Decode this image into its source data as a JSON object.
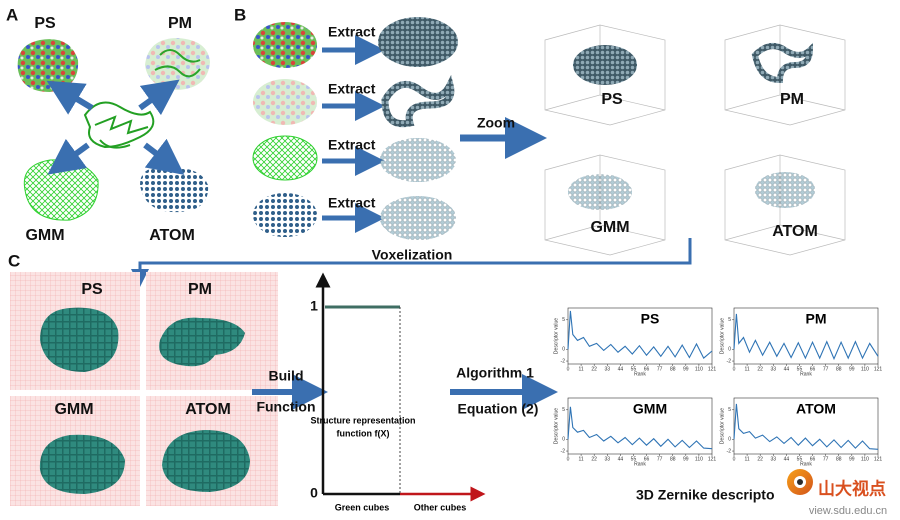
{
  "panel_a": {
    "letter": "A",
    "labels": [
      "PS",
      "PM",
      "GMM",
      "ATOM"
    ]
  },
  "panel_b": {
    "letter": "B",
    "extract": [
      "Extract",
      "Extract",
      "Extract",
      "Extract"
    ],
    "zoom": "Zoom",
    "voxelization": "Voxelization",
    "labels": [
      "PS",
      "PM",
      "GMM",
      "ATOM"
    ]
  },
  "panel_c": {
    "letter": "C",
    "labels": [
      "PS",
      "PM",
      "GMM",
      "ATOM"
    ],
    "build": "Build",
    "function": "Function",
    "graph": {
      "y_top": "1",
      "y_bottom": "0",
      "caption_1": "Structure representation",
      "caption_2": "function f(X)",
      "x_left": "Green cubes",
      "x_right": "Other cubes"
    },
    "algorithm": "Algorithm 1",
    "equation": "Equation (2)",
    "descriptor_plots": {
      "y_axis_label": "Descriptor value",
      "x_axis_label": "Rank",
      "xlim": [
        0,
        121
      ],
      "ylim": [
        -2.5,
        7
      ],
      "xticks": [
        0,
        11,
        22,
        33,
        44,
        55,
        66,
        77,
        88,
        99,
        110,
        121
      ],
      "yticks": [
        5,
        0,
        -2
      ],
      "ranks": [
        0,
        2,
        4,
        8,
        13,
        18,
        24,
        30,
        36,
        42,
        48,
        54,
        60,
        66,
        72,
        78,
        84,
        90,
        96,
        102,
        108,
        114,
        121
      ],
      "color": "#2f74b5",
      "plots": [
        {
          "title": "PS",
          "values": [
            0,
            6.5,
            2.5,
            1.5,
            2,
            0.5,
            1,
            -0.2,
            0.8,
            -0.5,
            0.5,
            -0.8,
            0.6,
            -1,
            0.4,
            -1.2,
            0.5,
            -1.3,
            0.7,
            -1.4,
            0.9,
            -1.5,
            -0.3
          ]
        },
        {
          "title": "PM",
          "values": [
            0,
            6,
            1,
            2,
            -0.5,
            1.5,
            -1,
            1.2,
            -1.2,
            1,
            -1.4,
            1.1,
            -1.5,
            1.2,
            -1.5,
            1.3,
            -1.6,
            1.2,
            -1.5,
            1.3,
            -1.5,
            1,
            -1.2
          ]
        },
        {
          "title": "GMM",
          "values": [
            0,
            5.5,
            2,
            1.2,
            1.5,
            0.3,
            0.8,
            -0.3,
            0.5,
            -0.6,
            0.3,
            -0.9,
            0.2,
            -1,
            0.1,
            -1.2,
            0,
            -1.3,
            -0.2,
            -1.4,
            -0.3,
            -1.5,
            -1.6
          ]
        },
        {
          "title": "ATOM",
          "values": [
            0,
            6,
            1.8,
            1,
            1.3,
            0.2,
            0.7,
            -0.4,
            0.4,
            -0.7,
            0.3,
            -1,
            0.2,
            -1.1,
            0,
            -1.3,
            -0.1,
            -1.4,
            -0.2,
            -1.5,
            -0.3,
            -1.6,
            -1.7
          ]
        }
      ]
    },
    "caption": "3D Zernike descripto"
  },
  "watermark": {
    "name": "山大视点",
    "url": "view.sdu.edu.cn"
  }
}
